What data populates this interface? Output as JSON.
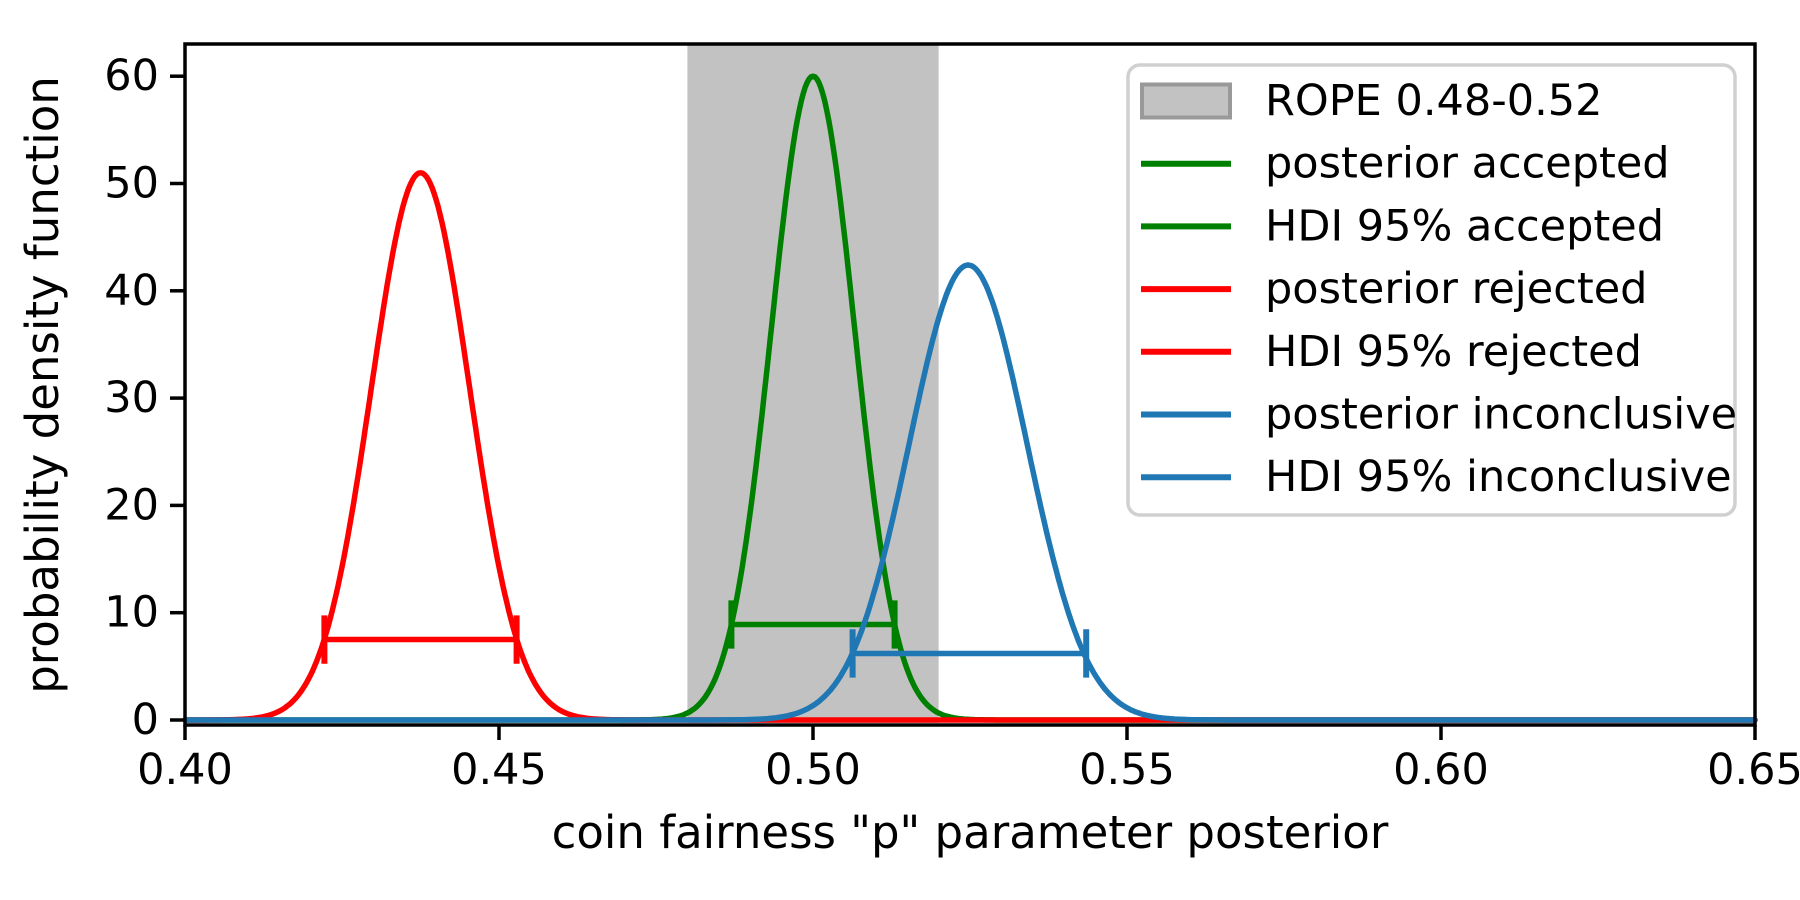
{
  "figure": {
    "background": "#ffffff",
    "spine_color": "#000000"
  },
  "chart_data": {
    "type": "line",
    "title": "",
    "xlabel": "coin fairness \"p\" parameter posterior",
    "ylabel": "probability density function",
    "xlim": [
      0.4,
      0.65
    ],
    "ylim": [
      0,
      63.0
    ],
    "xticks": [
      0.4,
      0.45,
      0.5,
      0.55,
      0.6,
      0.65
    ],
    "xtick_labels": [
      "0.40",
      "0.45",
      "0.50",
      "0.55",
      "0.60",
      "0.65"
    ],
    "yticks": [
      0,
      10,
      20,
      30,
      40,
      50,
      60
    ],
    "ytick_labels": [
      "0",
      "10",
      "20",
      "30",
      "40",
      "50",
      "60"
    ],
    "grid": false,
    "legend_position": "upper right",
    "rope": {
      "label": "ROPE 0.48-0.52",
      "xmin": 0.48,
      "xmax": 0.52,
      "fill": "#c2c2c2",
      "edge": "#999999"
    },
    "series": [
      {
        "name": "accepted",
        "posterior_label": "posterior accepted",
        "hdi_label": "HDI 95% accepted",
        "color": "#008000",
        "mean": 0.5,
        "sd": 0.00665,
        "peak_pdf": 60.0,
        "hdi": {
          "lo": 0.487,
          "hi": 0.513,
          "line_y": 8.9,
          "cap_halfheight": 2.25
        }
      },
      {
        "name": "rejected",
        "posterior_label": "posterior rejected",
        "hdi_label": "HDI 95% rejected",
        "color": "#ff0000",
        "mean": 0.4375,
        "sd": 0.00783,
        "peak_pdf": 51.0,
        "hdi": {
          "lo": 0.4222,
          "hi": 0.4528,
          "line_y": 7.5,
          "cap_halfheight": 2.25
        }
      },
      {
        "name": "inconclusive",
        "posterior_label": "posterior inconclusive",
        "hdi_label": "HDI 95% inconclusive",
        "color": "#1f77b4",
        "mean": 0.5247,
        "sd": 0.0094,
        "peak_pdf": 42.4,
        "hdi": {
          "lo": 0.5063,
          "hi": 0.5435,
          "line_y": 6.2,
          "cap_halfheight": 2.25
        }
      }
    ],
    "legend": [
      {
        "label": "ROPE 0.48-0.52",
        "swatch": "patch",
        "color": "#c2c2c2",
        "edge": "#999999"
      },
      {
        "label": "posterior accepted",
        "swatch": "line",
        "color": "#008000"
      },
      {
        "label": "HDI 95% accepted",
        "swatch": "line",
        "color": "#008000"
      },
      {
        "label": "posterior rejected",
        "swatch": "line",
        "color": "#ff0000"
      },
      {
        "label": "HDI 95% rejected",
        "swatch": "line",
        "color": "#ff0000"
      },
      {
        "label": "posterior inconclusive",
        "swatch": "line",
        "color": "#1f77b4"
      },
      {
        "label": "HDI 95% inconclusive",
        "swatch": "line",
        "color": "#1f77b4"
      }
    ],
    "legend_border": "#d0d0d0",
    "legend_fill": "#ffffff"
  }
}
